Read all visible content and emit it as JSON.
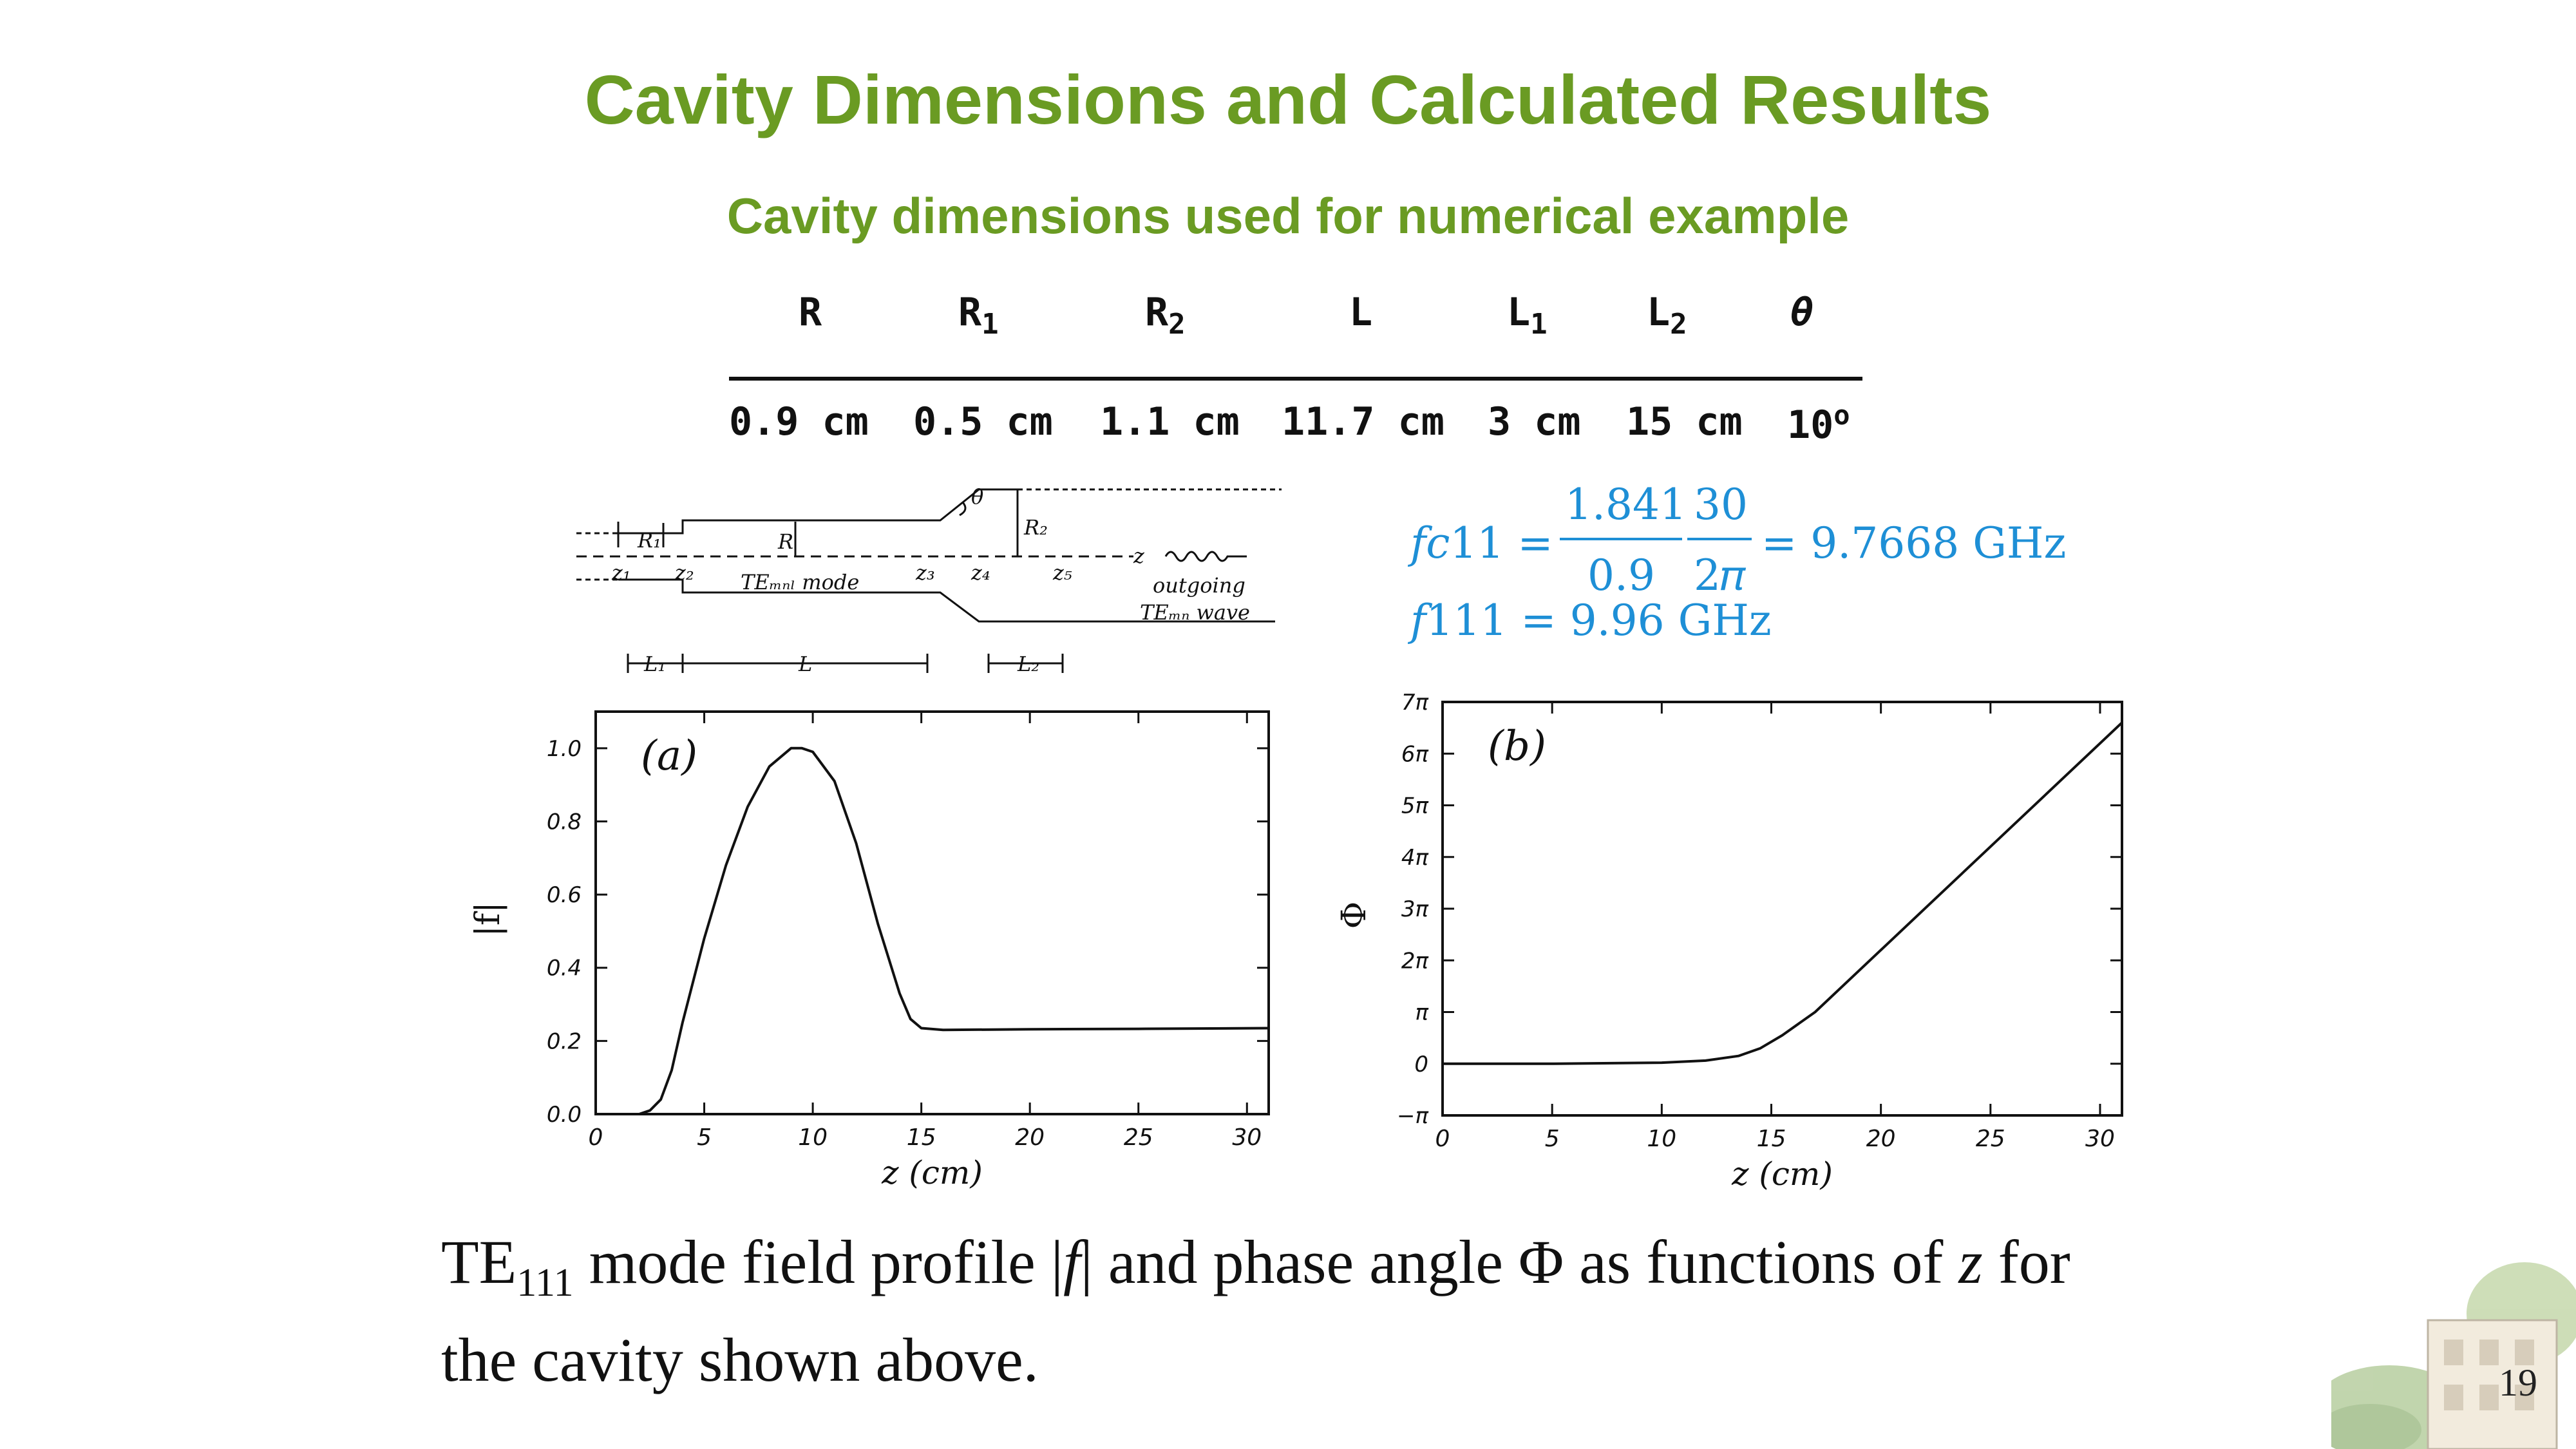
{
  "slide": {
    "title": "Cavity Dimensions and Calculated Results",
    "subtitle": "Cavity dimensions used for numerical example",
    "page_number": "19"
  },
  "dimension_table": {
    "headers": [
      {
        "base": "R",
        "sub": ""
      },
      {
        "base": "R",
        "sub": "1"
      },
      {
        "base": "R",
        "sub": "2"
      },
      {
        "base": "L",
        "sub": ""
      },
      {
        "base": "L",
        "sub": "1"
      },
      {
        "base": "L",
        "sub": "2"
      },
      {
        "base": "θ",
        "sub": ""
      }
    ],
    "values": [
      {
        "text": "0.9 cm",
        "sup": ""
      },
      {
        "text": "0.5 cm",
        "sup": ""
      },
      {
        "text": "1.1 cm",
        "sup": ""
      },
      {
        "text": "11.7 cm",
        "sup": ""
      },
      {
        "text": "3 cm",
        "sup": ""
      },
      {
        "text": "15 cm",
        "sup": ""
      },
      {
        "text": "10",
        "sup": "o"
      }
    ]
  },
  "cavity_diagram": {
    "labels": {
      "R1": "R₁",
      "R": "R",
      "R2": "R₂",
      "theta": "θ",
      "z1": "z₁",
      "z2": "z₂",
      "z3": "z₃",
      "z4": "z₄",
      "z5": "z₅",
      "z": "z",
      "mode": "TEₘₙₗ mode",
      "outgoing": "outgoing",
      "wave": "TEₘₙ wave",
      "L1": "L₁",
      "L": "L",
      "L2": "L₂"
    }
  },
  "equations": {
    "fc11_lhs": "𝑓𝑐11 =",
    "fc11_num1": "1.841",
    "fc11_den1": "0.9",
    "fc11_num2": "30",
    "fc11_den2": "2𝜋",
    "fc11_rhs": "= 9.7668 GHz",
    "f111": "𝑓111 = 9.96 GHz"
  },
  "caption": {
    "line1_a": "TE",
    "line1_sub": "111",
    "line1_b": " mode field profile |",
    "line1_f": "f",
    "line1_c": "| and phase angle Φ as functions of ",
    "line1_z": "z",
    "line1_d": " for",
    "line2": "the cavity shown above."
  },
  "colors": {
    "title_green": "#6a9b23",
    "equation_blue": "#1e8fd6",
    "plot_ink": "#111111"
  },
  "chart_data": [
    {
      "type": "line",
      "panel_label": "(a)",
      "title": "",
      "xlabel": "z  (cm)",
      "ylabel": "|f|",
      "xlim": [
        0,
        31
      ],
      "ylim": [
        0,
        1.1
      ],
      "x_ticks": [
        "0",
        "5",
        "10",
        "15",
        "20",
        "25",
        "30"
      ],
      "y_ticks": [
        "0.0",
        "0.2",
        "0.4",
        "0.6",
        "0.8",
        "1.0"
      ],
      "grid": false,
      "series": [
        {
          "x": [
            0,
            2,
            2.5,
            3,
            3.5,
            4,
            5,
            6,
            7,
            8,
            9,
            9.5,
            10,
            11,
            12,
            13,
            14,
            14.5,
            15,
            16,
            20,
            25,
            31
          ],
          "y": [
            0,
            0,
            0.01,
            0.04,
            0.12,
            0.25,
            0.48,
            0.68,
            0.84,
            0.95,
            1.0,
            1.0,
            0.99,
            0.91,
            0.74,
            0.52,
            0.33,
            0.26,
            0.235,
            0.23,
            0.232,
            0.233,
            0.235
          ]
        }
      ]
    },
    {
      "type": "line",
      "panel_label": "(b)",
      "title": "",
      "xlabel": "z  (cm)",
      "ylabel": "Φ",
      "xlim": [
        0,
        31
      ],
      "ylim_in_pi": [
        -1,
        7
      ],
      "x_ticks": [
        "0",
        "5",
        "10",
        "15",
        "20",
        "25",
        "30"
      ],
      "y_ticks": [
        "−π",
        "0",
        "π",
        "2π",
        "3π",
        "4π",
        "5π",
        "6π",
        "7π"
      ],
      "grid": false,
      "series": [
        {
          "x": [
            0,
            5,
            10,
            12,
            13.5,
            14.5,
            15.5,
            17,
            31
          ],
          "y_in_pi": [
            0,
            0,
            0.02,
            0.06,
            0.15,
            0.3,
            0.55,
            1.0,
            6.6
          ]
        }
      ]
    }
  ]
}
